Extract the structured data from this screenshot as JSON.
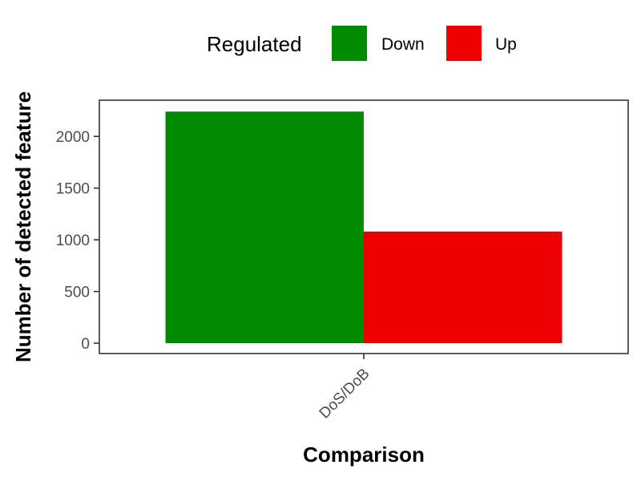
{
  "chart_data": {
    "type": "bar",
    "categories": [
      "DoS/DoB"
    ],
    "series": [
      {
        "name": "Down",
        "values": [
          2240
        ],
        "color": "#008B00"
      },
      {
        "name": "Up",
        "values": [
          1080
        ],
        "color": "#EE0000"
      }
    ],
    "xlabel": "Comparison",
    "ylabel": "Number of detected feature",
    "ylim": [
      -100,
      2350
    ],
    "yticks": [
      0,
      500,
      1000,
      1500,
      2000
    ],
    "legend": {
      "title": "Regulated",
      "position": "top"
    },
    "grid": false
  }
}
